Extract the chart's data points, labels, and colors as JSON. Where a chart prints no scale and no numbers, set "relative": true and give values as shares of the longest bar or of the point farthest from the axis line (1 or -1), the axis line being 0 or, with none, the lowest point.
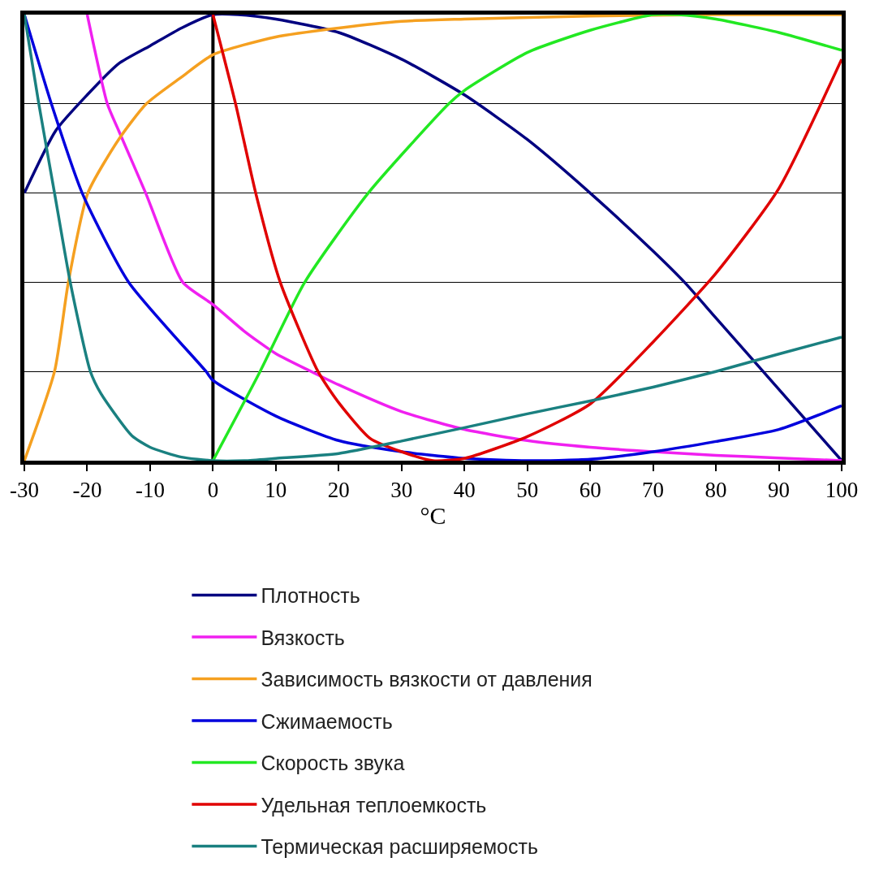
{
  "chart_data": {
    "type": "line",
    "relative": true,
    "xlabel": "°C",
    "xlim": [
      -30,
      100
    ],
    "xticks": [
      -30,
      -20,
      -10,
      0,
      10,
      20,
      30,
      40,
      50,
      60,
      70,
      80,
      90,
      100
    ],
    "grid": "y",
    "legend": "bottom",
    "line_style": "solid",
    "marker": "none",
    "ref_lines": [
      {
        "axis": "x",
        "value": 0,
        "color": "#000000"
      }
    ],
    "series": [
      {
        "name": "Плотность",
        "color": "#000080",
        "x": [
          -30,
          -25,
          -20,
          -15,
          -10,
          -5,
          0,
          4,
          10,
          20,
          30,
          40,
          50,
          60,
          70,
          75,
          80,
          90,
          100
        ],
        "values": [
          0.6,
          0.74,
          0.82,
          0.89,
          0.93,
          0.97,
          1.0,
          1.0,
          0.99,
          0.96,
          0.9,
          0.82,
          0.72,
          0.6,
          0.47,
          0.4,
          0.32,
          0.16,
          0.0
        ]
      },
      {
        "name": "Вязкость",
        "color": "#f020f0",
        "x": [
          -20,
          -16.8,
          -15,
          -10.7,
          -4.8,
          0,
          5,
          10,
          15.6,
          20,
          30,
          40,
          50,
          60,
          70,
          80,
          90,
          100
        ],
        "values": [
          1.0,
          0.8,
          0.74,
          0.6,
          0.4,
          0.35,
          0.29,
          0.24,
          0.2,
          0.17,
          0.11,
          0.07,
          0.045,
          0.03,
          0.02,
          0.012,
          0.006,
          0.0
        ]
      },
      {
        "name": "Зависимость вязкости от давления",
        "color": "#f5a020",
        "x": [
          -30,
          -25.2,
          -23.0,
          -19.9,
          -15,
          -10.6,
          -5,
          0,
          10,
          20,
          30,
          40,
          60,
          80,
          100
        ],
        "values": [
          0.0,
          0.2,
          0.4,
          0.6,
          0.72,
          0.8,
          0.86,
          0.91,
          0.95,
          0.97,
          0.985,
          0.99,
          0.997,
          1.0,
          1.0
        ]
      },
      {
        "name": "Сжимаемость",
        "color": "#0000dd",
        "x": [
          -30,
          -25.7,
          -20.8,
          -13.4,
          -1.1,
          0,
          10,
          20,
          30,
          40,
          50,
          60,
          70,
          80,
          90,
          100
        ],
        "values": [
          1.0,
          0.8,
          0.6,
          0.4,
          0.2,
          0.18,
          0.1,
          0.045,
          0.02,
          0.005,
          0.0,
          0.003,
          0.02,
          0.043,
          0.07,
          0.123
        ]
      },
      {
        "name": "Скорость звука",
        "color": "#22e822",
        "x": [
          0,
          7.5,
          14.6,
          24.7,
          37.5,
          40,
          50,
          60,
          70,
          74,
          80,
          90,
          100
        ],
        "values": [
          0.0,
          0.2,
          0.4,
          0.6,
          0.8,
          0.83,
          0.915,
          0.965,
          1.0,
          1.0,
          0.99,
          0.96,
          0.92
        ]
      },
      {
        "name": "Удельная теплоемкость",
        "color": "#e00000",
        "x": [
          0,
          3.6,
          6.8,
          10.7,
          16.7,
          20,
          25,
          30,
          35,
          40,
          50,
          60,
          70,
          80,
          90,
          100
        ],
        "values": [
          1.0,
          0.8,
          0.6,
          0.4,
          0.2,
          0.13,
          0.05,
          0.02,
          0.0,
          0.005,
          0.054,
          0.127,
          0.266,
          0.42,
          0.61,
          0.9
        ]
      },
      {
        "name": "Термическая расширяемость",
        "color": "#1a8080",
        "x": [
          -30,
          -27.7,
          -25.2,
          -22.7,
          -19.5,
          -17.8,
          -12.9,
          -10,
          -5,
          0,
          5,
          10,
          20,
          30,
          40,
          50,
          60,
          70,
          80,
          90,
          100
        ],
        "values": [
          1.0,
          0.8,
          0.6,
          0.4,
          0.2,
          0.15,
          0.056,
          0.03,
          0.008,
          0.0,
          0.0,
          0.005,
          0.016,
          0.044,
          0.074,
          0.105,
          0.134,
          0.165,
          0.2,
          0.239,
          0.277
        ]
      }
    ]
  }
}
